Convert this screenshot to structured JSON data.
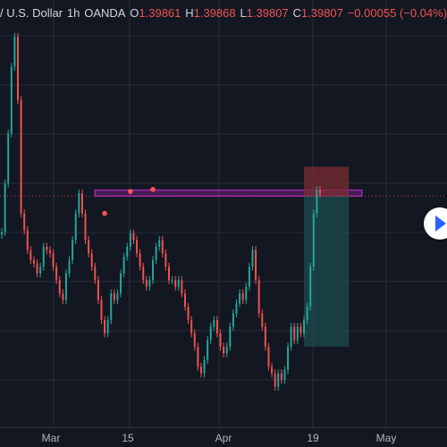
{
  "header": {
    "symbol": "/ U.S. Dollar",
    "interval": "1h",
    "broker": "OANDA",
    "open_label": "O",
    "open": "1.39861",
    "high_label": "H",
    "high": "1.39868",
    "low_label": "L",
    "low": "1.39807",
    "close_label": "C",
    "close": "1.39807",
    "change": "−0.00055 (−0.04%)"
  },
  "colors": {
    "background": "#131722",
    "grid": "#2a2e39",
    "up": "#26a69a",
    "down": "#ef5350",
    "zone_fill": "#9c27b0",
    "stop_fill": "#7b2c33",
    "target_fill": "#1c4e4f",
    "marker": "#ff5252"
  },
  "chart_data": {
    "type": "candlestick",
    "x_tick_labels": [
      "Mar",
      "15",
      "Apr",
      "19",
      "May"
    ],
    "series": [
      {
        "values": [
          1.3932,
          1.4005,
          1.408,
          1.418,
          1.4225,
          1.413,
          1.396,
          1.3935,
          1.3905,
          1.389,
          1.3885,
          1.387,
          1.388,
          1.391,
          1.3905,
          1.39,
          1.388,
          1.386,
          1.384,
          1.383,
          1.387,
          1.389,
          1.392,
          1.396,
          1.399,
          1.396,
          1.392,
          1.39,
          1.388,
          1.386,
          1.383,
          1.38,
          1.378,
          1.38,
          1.384,
          1.383,
          1.384,
          1.387,
          1.3895,
          1.391,
          1.393,
          1.392,
          1.39,
          1.388,
          1.386,
          1.385,
          1.386,
          1.389,
          1.391,
          1.392,
          1.39,
          1.388,
          1.386,
          1.386,
          1.385,
          1.386,
          1.384,
          1.382,
          1.38,
          1.378,
          1.376,
          1.373,
          1.372,
          1.374,
          1.377,
          1.379,
          1.38,
          1.378,
          1.376,
          1.375,
          1.376,
          1.379,
          1.381,
          1.3825,
          1.384,
          1.383,
          1.385,
          1.388,
          1.3905,
          1.386,
          1.381,
          1.379,
          1.376,
          1.373,
          1.372,
          1.37,
          1.372,
          1.371,
          1.3725,
          1.376,
          1.379,
          1.377,
          1.379,
          1.378,
          1.38,
          1.382,
          1.388,
          1.396,
          1.3995,
          1.399
        ]
      }
    ],
    "markers": [
      {
        "index": 32,
        "value": 1.396
      },
      {
        "index": 40,
        "value": 1.3993
      },
      {
        "index": 47,
        "value": 1.3996
      }
    ],
    "zone": {
      "start_index": 29,
      "end_index": 112,
      "low": 1.3986,
      "high": 1.3995
    },
    "position": {
      "type": "short",
      "start_index": 94,
      "end_index": 108,
      "entry": 1.3986,
      "stop": 1.403,
      "target": 1.376
    },
    "price_range": [
      1.369,
      1.424
    ]
  }
}
